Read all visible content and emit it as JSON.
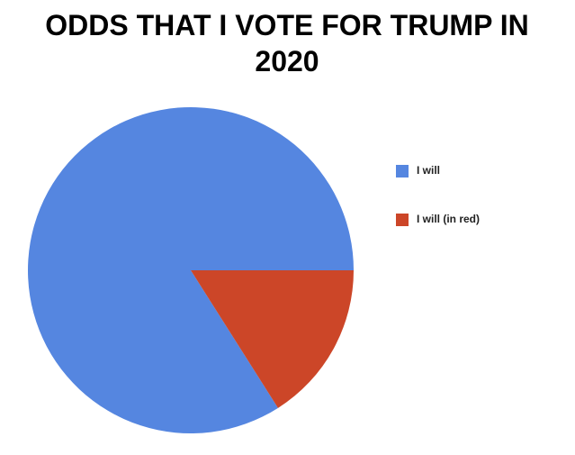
{
  "chart_data": {
    "type": "pie",
    "title": "ODDS THAT I VOTE FOR TRUMP IN 2020",
    "categories": [
      "I will",
      "I will (in red)"
    ],
    "values": [
      84,
      16
    ],
    "colors": [
      "#5586e0",
      "#cc4628"
    ],
    "legend": "right"
  }
}
